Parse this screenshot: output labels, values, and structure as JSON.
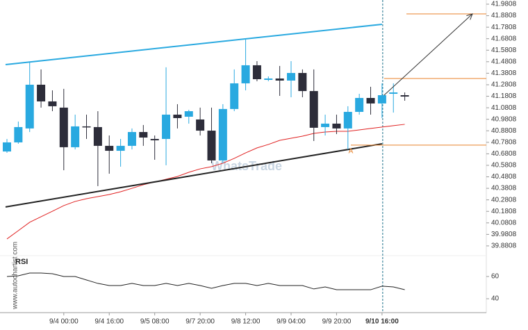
{
  "chart_data": {
    "type": "candlestick",
    "categories": [
      null,
      null,
      null,
      null,
      null,
      "9/4 00:00",
      null,
      null,
      null,
      "9/4 16:00",
      null,
      null,
      null,
      "9/5 08:00",
      null,
      null,
      null,
      "9/7 20:00",
      null,
      null,
      null,
      "9/8 12:00",
      null,
      null,
      null,
      "9/9 04:00",
      null,
      null,
      null,
      "9/9 20:00",
      null,
      null,
      null,
      "9/10 16:00",
      null,
      null
    ],
    "open": [
      40.701,
      40.78,
      40.901,
      41.281,
      41.136,
      41.082,
      40.738,
      40.919,
      40.913,
      40.75,
      40.707,
      40.75,
      40.87,
      40.81,
      40.81,
      41.021,
      41.003,
      40.979,
      40.882,
      40.623,
      41.07,
      41.293,
      41.45,
      41.323,
      41.335,
      41.317,
      41.383,
      41.226,
      40.913,
      40.943,
      40.901,
      41.045,
      41.166,
      41.118,
      41.202,
      41.19
    ],
    "close": [
      40.78,
      40.913,
      41.281,
      41.136,
      41.094,
      40.738,
      40.919,
      40.913,
      40.75,
      40.707,
      40.75,
      40.87,
      40.822,
      40.798,
      41.021,
      40.991,
      41.051,
      40.882,
      40.623,
      41.07,
      41.293,
      41.45,
      41.329,
      41.335,
      41.317,
      41.383,
      41.226,
      40.907,
      40.943,
      40.901,
      41.045,
      41.166,
      41.118,
      41.19,
      41.214,
      41.178
    ],
    "high": [
      40.81,
      40.961,
      41.474,
      41.414,
      41.232,
      41.245,
      41.021,
      41.021,
      41.051,
      40.84,
      40.81,
      40.901,
      40.931,
      40.84,
      41.432,
      41.112,
      41.063,
      41.082,
      41.082,
      41.112,
      41.414,
      41.673,
      41.486,
      41.353,
      41.444,
      41.486,
      41.414,
      41.414,
      41.021,
      41.021,
      41.094,
      41.202,
      41.263,
      41.293,
      41.293,
      41.214
    ],
    "low": [
      40.689,
      40.768,
      40.87,
      41.082,
      41.051,
      40.538,
      40.719,
      40.81,
      40.4,
      40.508,
      40.569,
      40.719,
      40.75,
      40.629,
      40.581,
      40.901,
      40.943,
      40.84,
      40.599,
      40.599,
      41.051,
      41.232,
      41.311,
      41.311,
      41.184,
      41.172,
      41.172,
      40.792,
      40.84,
      40.852,
      40.719,
      41.021,
      41.021,
      40.991,
      41.039,
      41.142
    ],
    "up_color": "#29a9e0",
    "down_color": "#2d2d3a",
    "moving_average": {
      "color": "#e02020",
      "values": [
        39.941,
        40.013,
        40.086,
        40.134,
        40.182,
        40.231,
        40.267,
        40.291,
        40.309,
        40.327,
        40.351,
        40.381,
        40.412,
        40.436,
        40.46,
        40.484,
        40.52,
        40.55,
        40.569,
        40.599,
        40.641,
        40.689,
        40.732,
        40.762,
        40.798,
        40.816,
        40.834,
        40.858,
        40.87,
        40.876,
        40.876,
        40.888,
        40.901,
        40.913,
        40.925,
        40.937
      ]
    },
    "upper_channel": {
      "color": "#29a9e0",
      "values": [
        41.456,
        41.806
      ]
    },
    "lower_channel": {
      "color": "#222222",
      "values": [
        40.219,
        40.768
      ]
    },
    "levels": {
      "color": "#e8822a",
      "values": [
        41.896,
        41.335,
        40.756
      ]
    },
    "level_label": "A",
    "forecast_arrow": [
      41.19,
      41.896
    ],
    "ylim": [
      39.814,
      42.017
    ],
    "yticks": [
      41.9808,
      41.8808,
      41.7808,
      41.6808,
      41.5808,
      41.4808,
      41.3808,
      41.2808,
      41.1808,
      41.0808,
      40.9808,
      40.8808,
      40.7808,
      40.6808,
      40.5808,
      40.4808,
      40.3808,
      40.2808,
      40.1808,
      40.0808,
      39.9808,
      39.8808
    ],
    "rsi": {
      "label": "RSI",
      "values": [
        60,
        60.6,
        63.1,
        63.1,
        62.5,
        60,
        60,
        56.9,
        53.8,
        51.9,
        51.9,
        53.8,
        51.9,
        51.9,
        53.8,
        51.9,
        53.8,
        51.9,
        49.4,
        51.9,
        53.8,
        53.8,
        51.9,
        53.8,
        51.9,
        51.9,
        51.9,
        48.8,
        50.6,
        48.1,
        48.1,
        48.1,
        48.1,
        51.3,
        50.6,
        48.1
      ],
      "ylim": [
        27.5,
        77.5
      ],
      "yticks": [
        40,
        60
      ]
    },
    "watermark": "WhatsTrade",
    "source": "www.autochartist.com"
  }
}
